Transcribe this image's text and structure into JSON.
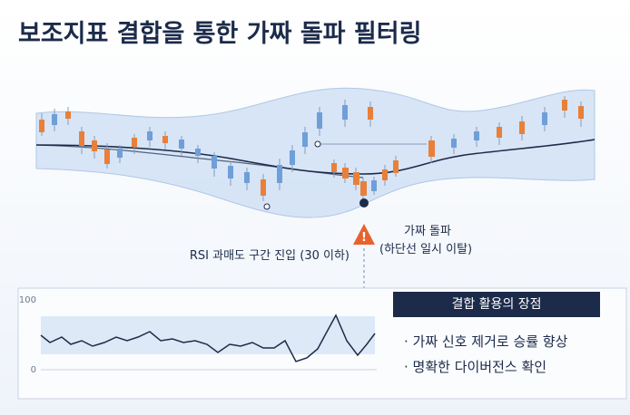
{
  "title": "보조지표 결합을 통한 가짜 돌파 필터링",
  "annotations": {
    "fake_breakout": "가짜 돌파",
    "fake_breakout_note": "(하단선 일시 이탈)",
    "rsi_note": "RSI 과매도 구간 진입 (30 이하)"
  },
  "rsi_panel": {
    "tick_top": "100",
    "tick_bottom": "0"
  },
  "benefits": {
    "title": "결합 활용의 장점",
    "items": [
      "· 가짜 신호 제거로 승률 향상",
      "· 명확한 다이버전스 확인"
    ]
  }
}
